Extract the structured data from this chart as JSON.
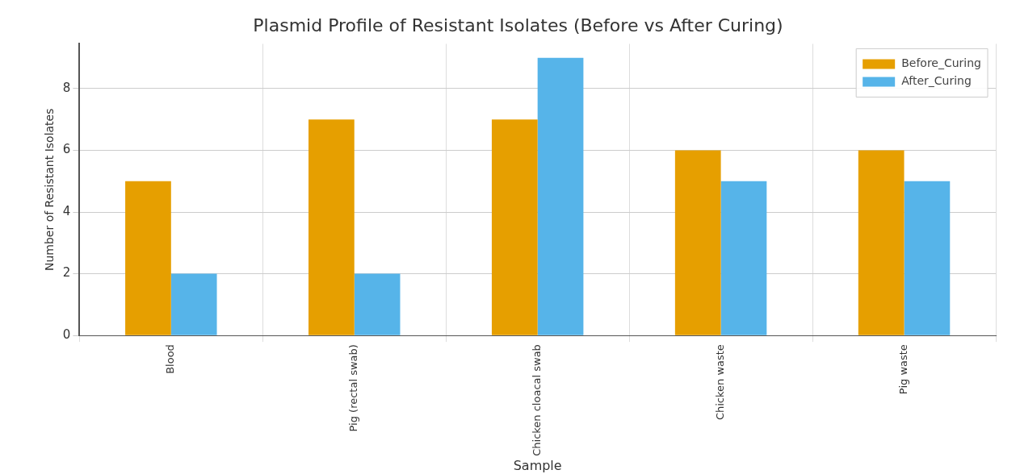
{
  "chart_data": {
    "type": "bar",
    "title": "Plasmid Profile of Resistant Isolates (Before vs After Curing)",
    "xlabel": "Sample",
    "ylabel": "Number of Resistant Isolates",
    "categories": [
      "Blood",
      "Pig (rectal swab)",
      "Chicken cloacal swab",
      "Chicken waste",
      "Pig waste"
    ],
    "series": [
      {
        "name": "Before_Curing",
        "color": "#e69f00",
        "values": [
          5,
          7,
          7,
          6,
          6
        ]
      },
      {
        "name": "After_Curing",
        "color": "#56b4e9",
        "values": [
          2,
          2,
          9,
          5,
          5
        ]
      }
    ],
    "ylim": [
      0,
      9.45
    ],
    "yticks": [
      0,
      2,
      4,
      6,
      8
    ],
    "grid": true,
    "legend": "top right"
  }
}
